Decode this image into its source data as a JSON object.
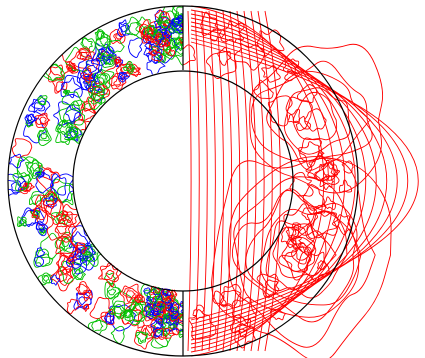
{
  "figure": {
    "description_visible_text": "",
    "colors": {
      "background": "#ffffff",
      "outline": "#000000",
      "contour_red": "#ff0000",
      "contour_green": "#00c000",
      "contour_blue": "#0000ff"
    },
    "left_half": {
      "content": "contour-field-in-shell",
      "contour_colors": [
        "contour_red",
        "contour_green",
        "contour_blue"
      ]
    },
    "right_half": {
      "content": "field-lines",
      "line_color": "contour_red"
    }
  }
}
